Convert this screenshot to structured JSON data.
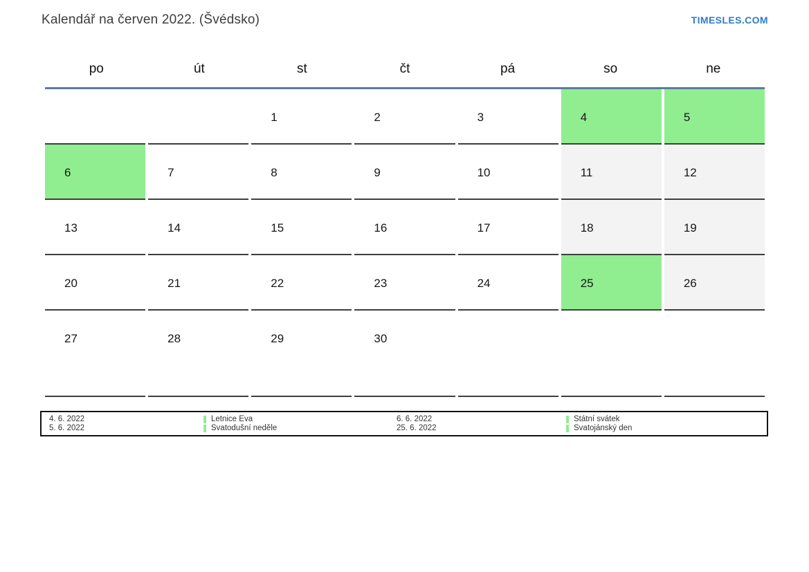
{
  "header": {
    "title": "Kalendář na červen 2022. (Švédsko)",
    "site": "TIMESLES.COM"
  },
  "calendar": {
    "weekdays": [
      "po",
      "út",
      "st",
      "čt",
      "pá",
      "so",
      "ne"
    ],
    "weeks": [
      [
        {
          "day": "",
          "type": "empty"
        },
        {
          "day": "",
          "type": "empty"
        },
        {
          "day": "1",
          "type": "workday"
        },
        {
          "day": "2",
          "type": "workday"
        },
        {
          "day": "3",
          "type": "workday"
        },
        {
          "day": "4",
          "type": "holiday"
        },
        {
          "day": "5",
          "type": "holiday"
        }
      ],
      [
        {
          "day": "6",
          "type": "holiday"
        },
        {
          "day": "7",
          "type": "workday"
        },
        {
          "day": "8",
          "type": "workday"
        },
        {
          "day": "9",
          "type": "workday"
        },
        {
          "day": "10",
          "type": "workday"
        },
        {
          "day": "11",
          "type": "weekend"
        },
        {
          "day": "12",
          "type": "weekend"
        }
      ],
      [
        {
          "day": "13",
          "type": "workday"
        },
        {
          "day": "14",
          "type": "workday"
        },
        {
          "day": "15",
          "type": "workday"
        },
        {
          "day": "16",
          "type": "workday"
        },
        {
          "day": "17",
          "type": "workday"
        },
        {
          "day": "18",
          "type": "weekend"
        },
        {
          "day": "19",
          "type": "weekend"
        }
      ],
      [
        {
          "day": "20",
          "type": "workday"
        },
        {
          "day": "21",
          "type": "workday"
        },
        {
          "day": "22",
          "type": "workday"
        },
        {
          "day": "23",
          "type": "workday"
        },
        {
          "day": "24",
          "type": "workday"
        },
        {
          "day": "25",
          "type": "holiday"
        },
        {
          "day": "26",
          "type": "weekend"
        }
      ],
      [
        {
          "day": "27",
          "type": "workday"
        },
        {
          "day": "28",
          "type": "workday"
        },
        {
          "day": "29",
          "type": "workday"
        },
        {
          "day": "30",
          "type": "workday"
        },
        {
          "day": "",
          "type": "empty"
        },
        {
          "day": "",
          "type": "empty"
        },
        {
          "day": "",
          "type": "empty"
        }
      ]
    ]
  },
  "legend": {
    "groups": [
      {
        "dates": [
          "4. 6. 2022",
          "5. 6. 2022"
        ],
        "names": [
          "Letnice Eva",
          "Svatodušní neděle"
        ]
      },
      {
        "dates": [
          "6. 6. 2022",
          "25. 6. 2022"
        ],
        "names": [
          "Státní svátek",
          "Svatojánský den"
        ]
      }
    ]
  },
  "colors": {
    "holiday": "#90ee90",
    "weekend": "#f3f3f3",
    "header_line": "#5b7b9d",
    "cell_border": "#3d3d3d",
    "link_blue": "#2d7cc6"
  }
}
